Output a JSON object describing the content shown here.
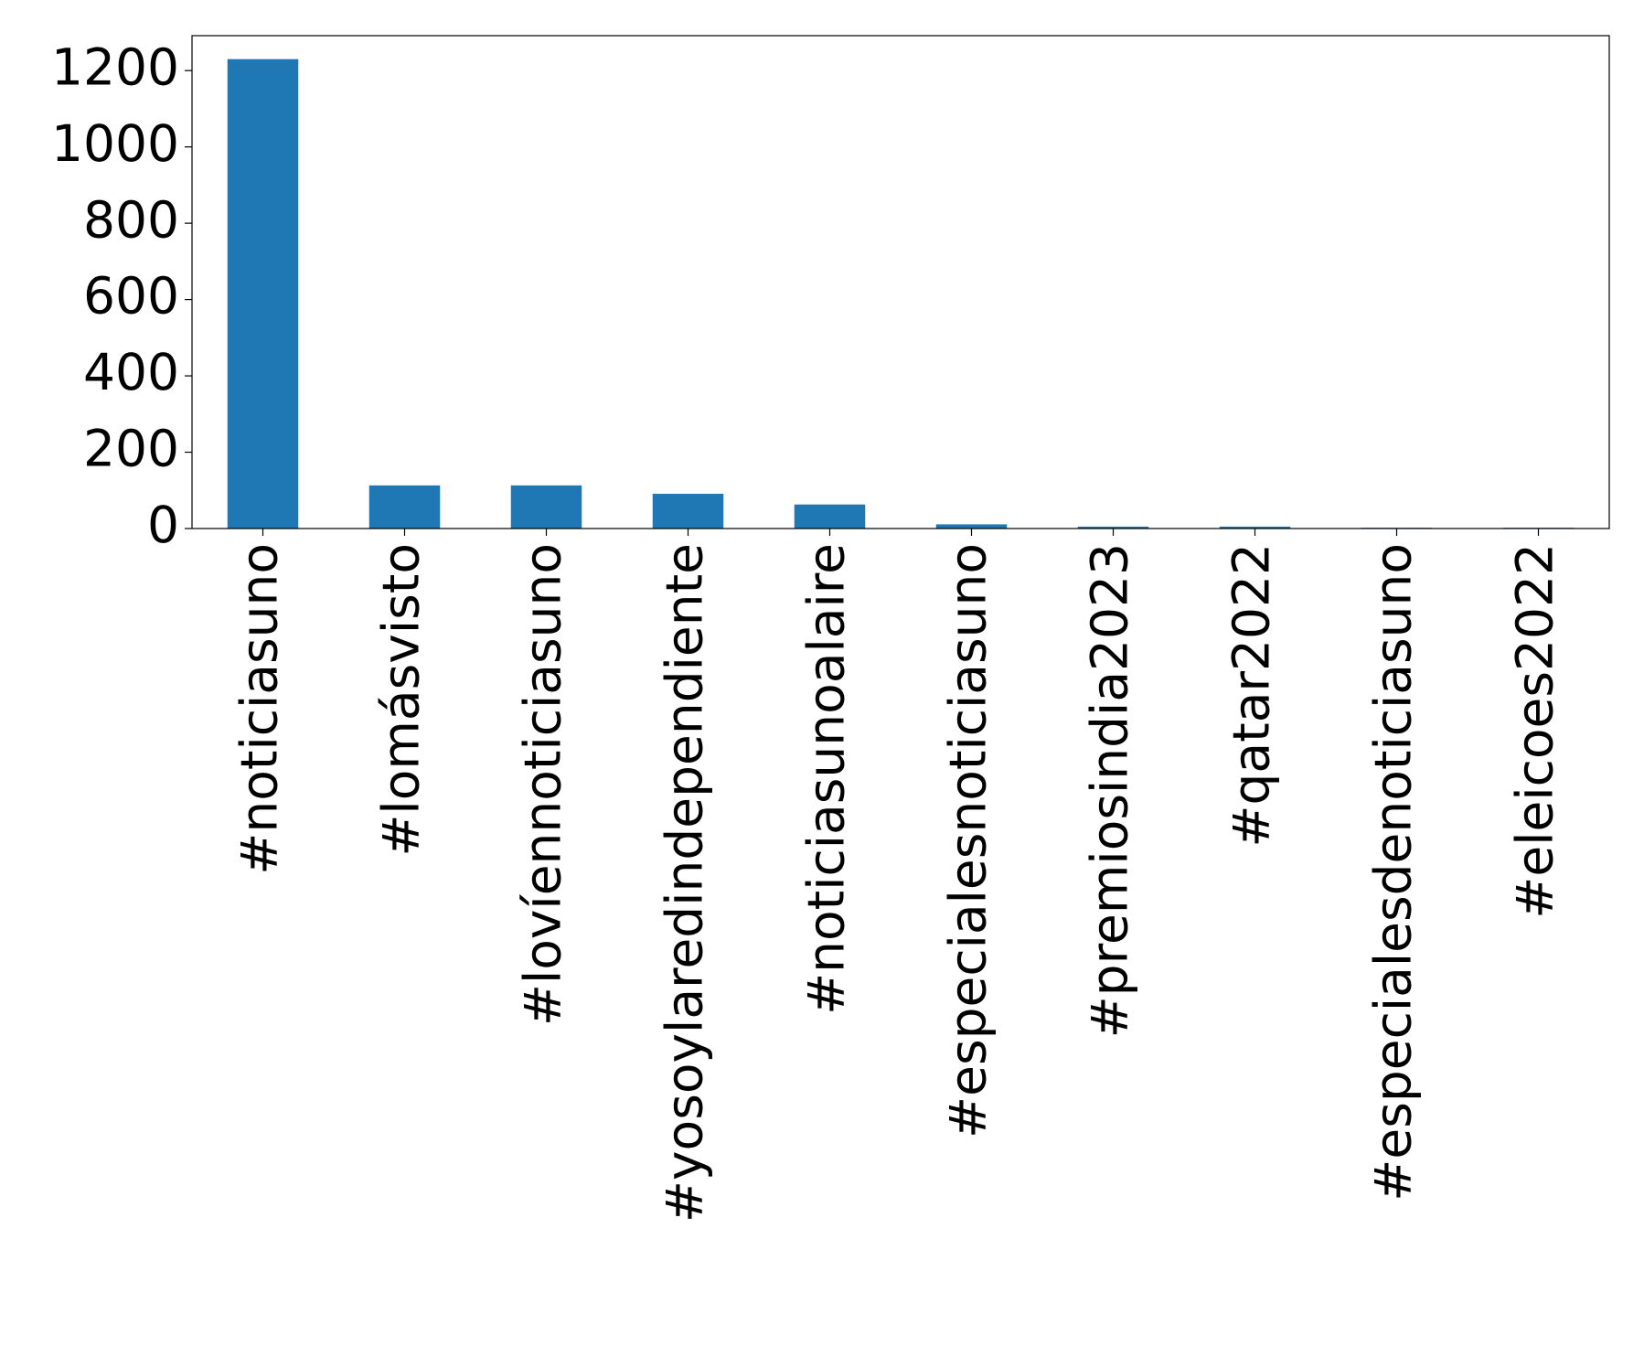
{
  "chart_data": {
    "type": "bar",
    "categories": [
      "#noticiasuno",
      "#lomásvisto",
      "#lovíennoticiasuno",
      "#yosoylaredindependiente",
      "#noticiasunoalaire",
      "#especialesnoticiasuno",
      "#premiosindia2023",
      "#qatar2022",
      "#especialesdenoticiasuno",
      "#eleicoes2022"
    ],
    "values": [
      1230,
      113,
      113,
      91,
      63,
      11,
      5,
      5,
      2,
      2
    ],
    "color": "#1f77b4",
    "ylim": [
      0,
      1291.5
    ],
    "yticks": [
      0,
      200,
      400,
      600,
      800,
      1000,
      1200
    ],
    "grid": false
  }
}
